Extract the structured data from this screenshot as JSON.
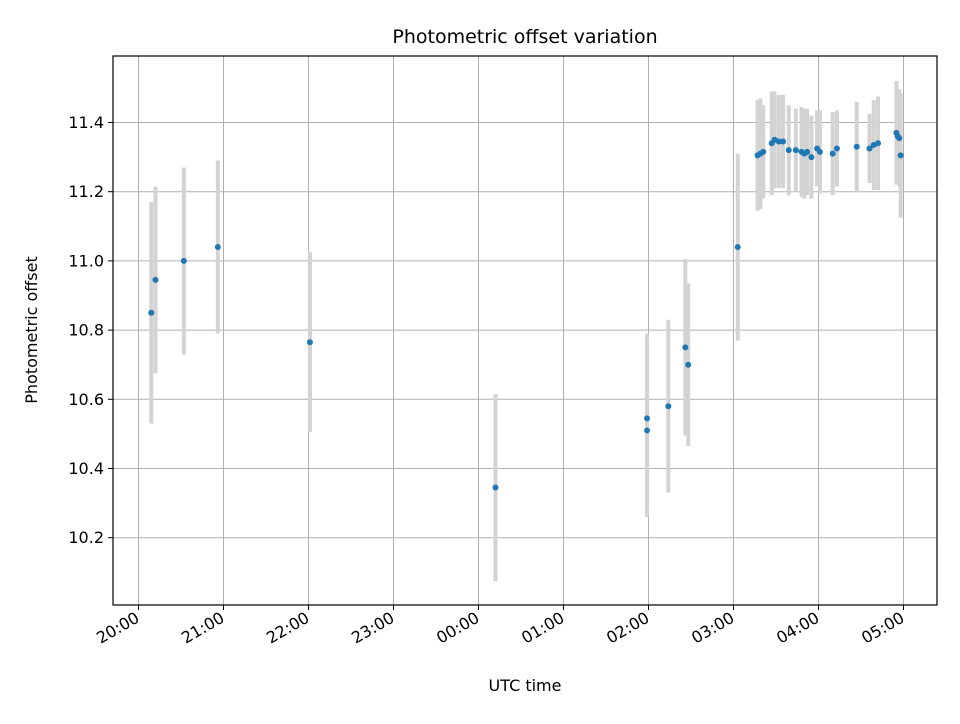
{
  "chart_data": {
    "type": "scatter",
    "title": "Photometric offset variation",
    "xlabel": "UTC time",
    "ylabel": "Photometric offset",
    "grid": true,
    "x_axis": "time",
    "xlim": [
      "20:00",
      "05:00"
    ],
    "ylim": [
      10.0,
      11.58
    ],
    "xticks": [
      "20:00",
      "21:00",
      "22:00",
      "23:00",
      "00:00",
      "01:00",
      "02:00",
      "03:00",
      "04:00",
      "05:00"
    ],
    "yticks": [
      10.2,
      10.4,
      10.6,
      10.8,
      11.0,
      11.2,
      11.4
    ],
    "ytick_labels": [
      "10.2",
      "10.4",
      "10.6",
      "10.8",
      "11.0",
      "11.2",
      "11.4"
    ],
    "point_color": "#1f77b4",
    "errorbar_color": "#d3d3d3",
    "series": [
      {
        "points": [
          {
            "time": "20:09",
            "y": 10.85,
            "err": 0.32
          },
          {
            "time": "20:12",
            "y": 10.945,
            "err": 0.27
          },
          {
            "time": "20:32",
            "y": 11.0,
            "err": 0.27
          },
          {
            "time": "20:56",
            "y": 11.04,
            "err": 0.25
          },
          {
            "time": "22:01",
            "y": 10.765,
            "err": 0.26
          },
          {
            "time": "00:12",
            "y": 10.345,
            "err": 0.27
          },
          {
            "time": "01:59",
            "y": 10.545,
            "err": 0.245
          },
          {
            "time": "01:59",
            "y": 10.51,
            "err": 0.25
          },
          {
            "time": "02:14",
            "y": 10.58,
            "err": 0.25
          },
          {
            "time": "02:26",
            "y": 10.75,
            "err": 0.255
          },
          {
            "time": "02:28",
            "y": 10.7,
            "err": 0.235
          },
          {
            "time": "03:03",
            "y": 11.04,
            "err": 0.27
          },
          {
            "time": "03:17",
            "y": 11.305,
            "err": 0.16
          },
          {
            "time": "03:19",
            "y": 11.31,
            "err": 0.16
          },
          {
            "time": "03:21",
            "y": 11.315,
            "err": 0.135
          },
          {
            "time": "03:27",
            "y": 11.34,
            "err": 0.15
          },
          {
            "time": "03:29",
            "y": 11.35,
            "err": 0.14
          },
          {
            "time": "03:32",
            "y": 11.345,
            "err": 0.135
          },
          {
            "time": "03:35",
            "y": 11.345,
            "err": 0.135
          },
          {
            "time": "03:39",
            "y": 11.32,
            "err": 0.13
          },
          {
            "time": "03:44",
            "y": 11.32,
            "err": 0.12
          },
          {
            "time": "03:48",
            "y": 11.315,
            "err": 0.13
          },
          {
            "time": "03:50",
            "y": 11.31,
            "err": 0.13
          },
          {
            "time": "03:52",
            "y": 11.315,
            "err": 0.125
          },
          {
            "time": "03:55",
            "y": 11.3,
            "err": 0.12
          },
          {
            "time": "03:59",
            "y": 11.325,
            "err": 0.11
          },
          {
            "time": "04:01",
            "y": 11.315,
            "err": 0.12
          },
          {
            "time": "04:10",
            "y": 11.31,
            "err": 0.12
          },
          {
            "time": "04:13",
            "y": 11.325,
            "err": 0.11
          },
          {
            "time": "04:27",
            "y": 11.33,
            "err": 0.13
          },
          {
            "time": "04:36",
            "y": 11.325,
            "err": 0.1
          },
          {
            "time": "04:39",
            "y": 11.335,
            "err": 0.13
          },
          {
            "time": "04:42",
            "y": 11.34,
            "err": 0.135
          },
          {
            "time": "04:55",
            "y": 11.37,
            "err": 0.15
          },
          {
            "time": "04:56",
            "y": 11.36,
            "err": 0.13
          },
          {
            "time": "04:57",
            "y": 11.355,
            "err": 0.14
          },
          {
            "time": "04:58",
            "y": 11.305,
            "err": 0.18
          }
        ]
      }
    ]
  }
}
